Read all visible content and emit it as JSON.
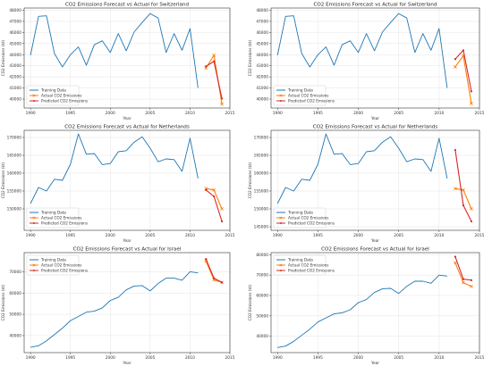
{
  "chart_data": [
    {
      "type": "line",
      "title": "CO2 Emissions Forecast vs Actual for Switzerland",
      "xlabel": "Year",
      "ylabel": "CO2 Emissions (kt)",
      "xlim": [
        1989.2,
        2015
      ],
      "ylim": [
        39200,
        48200
      ],
      "xticks": [
        1990,
        1995,
        2000,
        2005,
        2010,
        2015
      ],
      "yticks": [
        40000,
        41000,
        42000,
        43000,
        44000,
        45000,
        46000,
        47000,
        48000
      ],
      "grid": true,
      "legend_position": "lower-left",
      "series": [
        {
          "name": "Training Data",
          "color": "#1f77b4",
          "marker": "none",
          "x": [
            1990,
            1991,
            1992,
            1993,
            1994,
            1995,
            1996,
            1997,
            1998,
            1999,
            2000,
            2001,
            2002,
            2003,
            2004,
            2005,
            2006,
            2007,
            2008,
            2009,
            2010,
            2011
          ],
          "y": [
            43950,
            47450,
            47500,
            44100,
            42900,
            44000,
            44700,
            43050,
            44900,
            45250,
            44200,
            45900,
            44350,
            46050,
            46900,
            47700,
            47300,
            44200,
            45900,
            44400,
            46350,
            41000
          ]
        },
        {
          "name": "Actual CO2 Emissions",
          "color": "#ff7f0e",
          "marker": "x",
          "x": [
            2012,
            2013,
            2014
          ],
          "y": [
            42800,
            43950,
            39550
          ]
        },
        {
          "name": "Predicted CO2 Emissions",
          "color": "#d62728",
          "marker": "dot",
          "x": [
            2012,
            2013,
            2014
          ],
          "y": [
            42950,
            43400,
            40050
          ]
        }
      ]
    },
    {
      "type": "line",
      "title": "CO2 Emissions Forecast vs Actual for Switzerland",
      "xlabel": "Year",
      "ylabel": "CO2 Emissions (kt)",
      "xlim": [
        1989.2,
        2015
      ],
      "ylim": [
        39200,
        48200
      ],
      "xticks": [
        1990,
        1995,
        2000,
        2005,
        2010,
        2015
      ],
      "yticks": [
        40000,
        41000,
        42000,
        43000,
        44000,
        45000,
        46000,
        47000,
        48000
      ],
      "grid": true,
      "legend_position": "lower-left",
      "series": [
        {
          "name": "Training Data",
          "color": "#1f77b4",
          "marker": "none",
          "x": [
            1990,
            1991,
            1992,
            1993,
            1994,
            1995,
            1996,
            1997,
            1998,
            1999,
            2000,
            2001,
            2002,
            2003,
            2004,
            2005,
            2006,
            2007,
            2008,
            2009,
            2010,
            2011
          ],
          "y": [
            43950,
            47450,
            47500,
            44100,
            42900,
            44000,
            44700,
            43050,
            44900,
            45250,
            44200,
            45900,
            44350,
            46050,
            46900,
            47700,
            47300,
            44200,
            45900,
            44400,
            46350,
            41000
          ]
        },
        {
          "name": "Actual CO2 Emissions",
          "color": "#ff7f0e",
          "marker": "x",
          "x": [
            2012,
            2013,
            2014
          ],
          "y": [
            42900,
            43900,
            39600
          ]
        },
        {
          "name": "Predicted CO2 Emissions",
          "color": "#d62728",
          "marker": "dot",
          "x": [
            2012,
            2013,
            2014
          ],
          "y": [
            43600,
            44400,
            40700
          ]
        }
      ]
    },
    {
      "type": "line",
      "title": "CO2 Emissions Forecast vs Actual for Netherlands",
      "xlabel": "Year",
      "ylabel": "CO2 Emissions (kt)",
      "xlim": [
        1989.2,
        2015
      ],
      "ylim": [
        144000,
        172000
      ],
      "xticks": [
        1990,
        1995,
        2000,
        2005,
        2010,
        2015
      ],
      "yticks": [
        150000,
        155000,
        160000,
        165000,
        170000
      ],
      "grid": true,
      "legend_position": "lower-left",
      "series": [
        {
          "name": "Training Data",
          "color": "#1f77b4",
          "marker": "none",
          "x": [
            1990,
            1991,
            1992,
            1993,
            1994,
            1995,
            1996,
            1997,
            1998,
            1999,
            2000,
            2001,
            2002,
            2003,
            2004,
            2005,
            2006,
            2007,
            2008,
            2009,
            2010,
            2011
          ],
          "y": [
            151500,
            156000,
            155000,
            158300,
            158000,
            162500,
            171000,
            165300,
            165500,
            162400,
            162700,
            166000,
            166300,
            168700,
            170200,
            167000,
            163200,
            164000,
            163800,
            160500,
            169800,
            158500
          ]
        },
        {
          "name": "Actual CO2 Emissions",
          "color": "#ff7f0e",
          "marker": "x",
          "x": [
            2012,
            2013,
            2014
          ],
          "y": [
            155700,
            155300,
            150000
          ]
        },
        {
          "name": "Predicted CO2 Emissions",
          "color": "#d62728",
          "marker": "dot",
          "x": [
            2012,
            2013,
            2014
          ],
          "y": [
            155300,
            153500,
            146500
          ]
        }
      ]
    },
    {
      "type": "line",
      "title": "CO2 Emissions Forecast vs Actual for Netherlands",
      "xlabel": "Year",
      "ylabel": "CO2 Emissions (kt)",
      "xlim": [
        1989.2,
        2015
      ],
      "ylim": [
        144000,
        172000
      ],
      "xticks": [
        1990,
        1995,
        2000,
        2005,
        2010,
        2015
      ],
      "yticks": [
        145000,
        150000,
        155000,
        160000,
        165000,
        170000
      ],
      "grid": true,
      "legend_position": "lower-left",
      "series": [
        {
          "name": "Training Data",
          "color": "#1f77b4",
          "marker": "none",
          "x": [
            1990,
            1991,
            1992,
            1993,
            1994,
            1995,
            1996,
            1997,
            1998,
            1999,
            2000,
            2001,
            2002,
            2003,
            2004,
            2005,
            2006,
            2007,
            2008,
            2009,
            2010,
            2011
          ],
          "y": [
            151500,
            156000,
            155000,
            158300,
            158000,
            162500,
            171000,
            165300,
            165500,
            162400,
            162700,
            166000,
            166300,
            168700,
            170200,
            167000,
            163200,
            164000,
            163800,
            160500,
            169800,
            158500
          ]
        },
        {
          "name": "Actual CO2 Emissions",
          "color": "#ff7f0e",
          "marker": "x",
          "x": [
            2012,
            2013,
            2014
          ],
          "y": [
            155700,
            155300,
            150000
          ]
        },
        {
          "name": "Predicted CO2 Emissions",
          "color": "#d62728",
          "marker": "dot",
          "x": [
            2012,
            2013,
            2014
          ],
          "y": [
            166500,
            151000,
            146500
          ]
        }
      ]
    },
    {
      "type": "line",
      "title": "CO2 Emissions Forecast vs Actual for Israel",
      "xlabel": "Year",
      "ylabel": "CO2 Emissions (kt)",
      "xlim": [
        1989.2,
        2015
      ],
      "ylim": [
        32000,
        79000
      ],
      "xticks": [
        1990,
        1995,
        2000,
        2005,
        2010,
        2015
      ],
      "yticks": [
        40000,
        50000,
        60000,
        70000
      ],
      "grid": true,
      "legend_position": "upper-left",
      "series": [
        {
          "name": "Training Data",
          "color": "#1f77b4",
          "marker": "none",
          "x": [
            1990,
            1991,
            1992,
            1993,
            1994,
            1995,
            1996,
            1997,
            1998,
            1999,
            2000,
            2001,
            2002,
            2003,
            2004,
            2005,
            2006,
            2007,
            2008,
            2009,
            2010,
            2011
          ],
          "y": [
            34500,
            35200,
            37500,
            40500,
            43500,
            47000,
            49000,
            51000,
            51500,
            53000,
            56500,
            58000,
            61500,
            63300,
            63500,
            61000,
            64500,
            67000,
            67000,
            66000,
            70000,
            69500
          ]
        },
        {
          "name": "Actual CO2 Emissions",
          "color": "#ff7f0e",
          "marker": "x",
          "x": [
            2012,
            2013,
            2014
          ],
          "y": [
            75000,
            66200,
            65000
          ]
        },
        {
          "name": "Predicted CO2 Emissions",
          "color": "#d62728",
          "marker": "dot",
          "x": [
            2012,
            2013,
            2014
          ],
          "y": [
            76000,
            67000,
            65000
          ]
        }
      ]
    },
    {
      "type": "line",
      "title": "CO2 Emissions Forecast vs Actual for Israel",
      "xlabel": "Year",
      "ylabel": "CO2 Emissions (kt)",
      "xlim": [
        1989.2,
        2015
      ],
      "ylim": [
        32000,
        81000
      ],
      "xticks": [
        1990,
        1995,
        2000,
        2005,
        2010,
        2015
      ],
      "yticks": [
        40000,
        50000,
        60000,
        70000,
        80000
      ],
      "grid": true,
      "legend_position": "upper-left",
      "series": [
        {
          "name": "Training Data",
          "color": "#1f77b4",
          "marker": "none",
          "x": [
            1990,
            1991,
            1992,
            1993,
            1994,
            1995,
            1996,
            1997,
            1998,
            1999,
            2000,
            2001,
            2002,
            2003,
            2004,
            2005,
            2006,
            2007,
            2008,
            2009,
            2010,
            2011
          ],
          "y": [
            34500,
            35200,
            37500,
            40500,
            43500,
            47000,
            49000,
            51000,
            51500,
            53000,
            56500,
            58000,
            61500,
            63300,
            63500,
            61000,
            64500,
            67000,
            67000,
            66000,
            70000,
            69500
          ]
        },
        {
          "name": "Actual CO2 Emissions",
          "color": "#ff7f0e",
          "marker": "x",
          "x": [
            2012,
            2013,
            2014
          ],
          "y": [
            76000,
            66300,
            64500
          ]
        },
        {
          "name": "Predicted CO2 Emissions",
          "color": "#d62728",
          "marker": "dot",
          "x": [
            2012,
            2013,
            2014
          ],
          "y": [
            79000,
            68000,
            67500
          ]
        }
      ]
    }
  ]
}
